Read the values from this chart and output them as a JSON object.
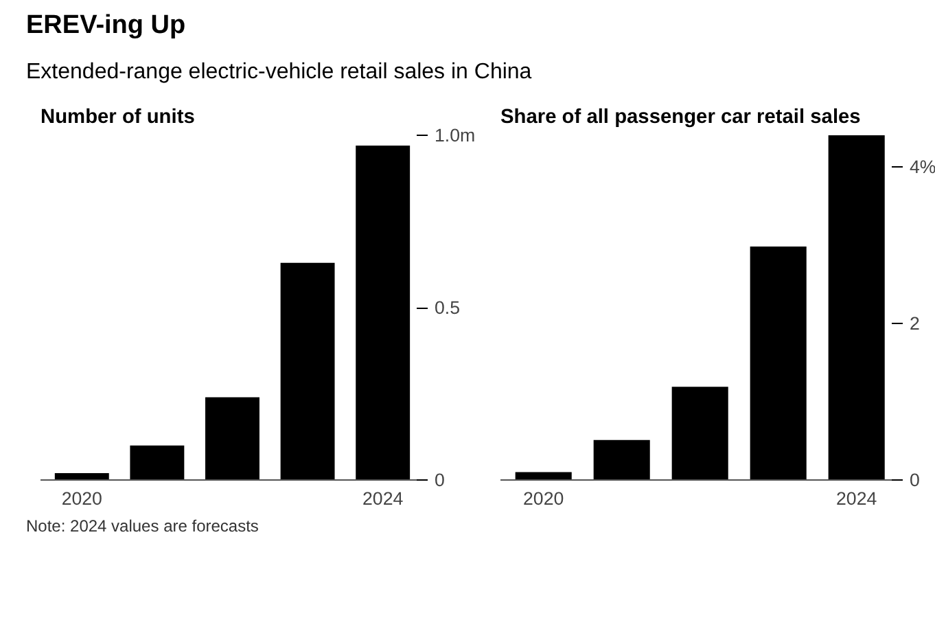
{
  "chart_data": [
    {
      "type": "bar",
      "title": "EREV-ing Up",
      "subtitle": "Extended-range electric-vehicle retail sales in China",
      "ylabel": "Number of units",
      "categories": [
        "2020",
        null,
        null,
        null,
        "2024"
      ],
      "values": [
        0.02,
        0.1,
        0.24,
        0.63,
        0.97
      ],
      "color": "#000000",
      "ylim": [
        0,
        1.0
      ],
      "yticks": [
        0,
        0.5,
        {
          "value": 1.0,
          "label": "1.0m"
        }
      ],
      "grid": false,
      "annotations": [
        "Note: 2024 values are forecasts"
      ]
    },
    {
      "type": "bar",
      "ylabel": "Share of all passenger car retail sales",
      "categories": [
        "2020",
        null,
        null,
        null,
        "2024"
      ],
      "values": [
        0.1,
        0.51,
        1.19,
        2.98,
        4.4
      ],
      "color": "#000000",
      "ylim": [
        0,
        4.4
      ],
      "yticks": [
        0,
        2,
        {
          "value": 4,
          "label": "4%"
        }
      ],
      "grid": false
    }
  ]
}
